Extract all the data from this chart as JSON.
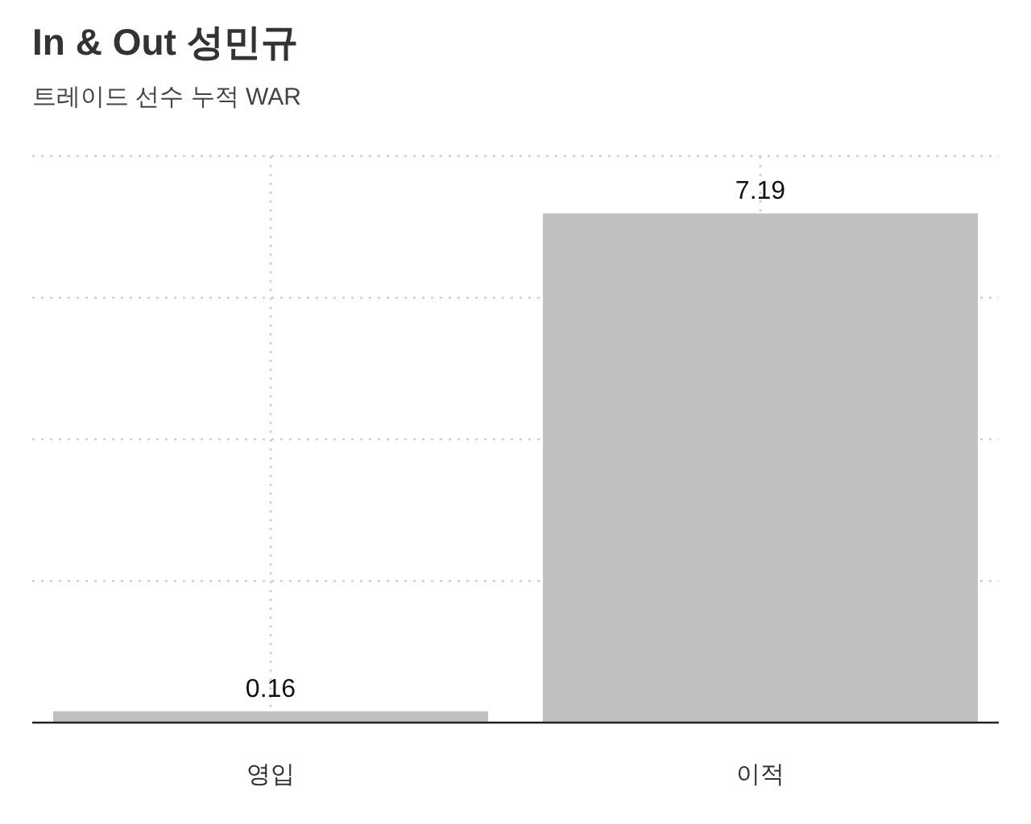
{
  "chart_data": {
    "type": "bar",
    "title": "In & Out 성민규",
    "subtitle": "트레이드 선수 누적 WAR",
    "categories": [
      "영입",
      "이적"
    ],
    "values": [
      0.16,
      7.19
    ],
    "color": "#c0c0c0",
    "data_labels": true,
    "ylim": [
      0,
      8
    ],
    "yticks": [
      {
        "value": 2,
        "label": null
      },
      {
        "value": 4,
        "label": null
      },
      {
        "value": 6,
        "label": null
      },
      {
        "value": 8,
        "label": null
      }
    ],
    "tick_labels": "x",
    "grid": true
  }
}
